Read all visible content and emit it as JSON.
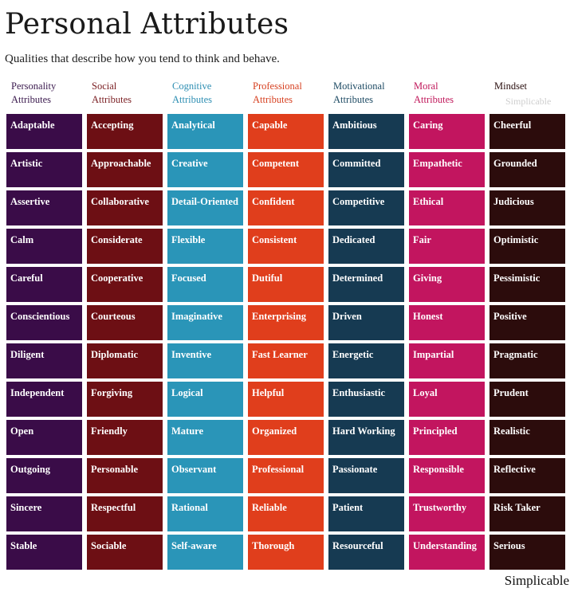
{
  "title": "Personal Attributes",
  "subtitle": "Qualities that describe how you tend to think and behave.",
  "watermark_small": "Simplicable",
  "footer": "Simplicable",
  "columns": [
    {
      "header": [
        "Personality",
        "Attributes"
      ],
      "header_color": "#3b1a4e",
      "cell_color": "#3a0c48",
      "items": [
        "Adaptable",
        "Artistic",
        "Assertive",
        "Calm",
        "Careful",
        "Conscientious",
        "Diligent",
        "Independent",
        "Open",
        "Outgoing",
        "Sincere",
        "Stable"
      ]
    },
    {
      "header": [
        "Social",
        "Attributes"
      ],
      "header_color": "#7a1e22",
      "cell_color": "#6d0f14",
      "items": [
        "Accepting",
        "Approachable",
        "Collaborative",
        "Considerate",
        "Cooperative",
        "Courteous",
        "Diplomatic",
        "Forgiving",
        "Friendly",
        "Personable",
        "Respectful",
        "Sociable"
      ]
    },
    {
      "header": [
        "Cognitive",
        "Attributes"
      ],
      "header_color": "#2f8fb3",
      "cell_color": "#2a95b8",
      "items": [
        "Analytical",
        "Creative",
        "Detail-Oriented",
        "Flexible",
        "Focused",
        "Imaginative",
        "Inventive",
        "Logical",
        "Mature",
        "Observant",
        "Rational",
        "Self-aware"
      ]
    },
    {
      "header": [
        "Professional",
        "Attributes"
      ],
      "header_color": "#d63f1f",
      "cell_color": "#e03e1c",
      "items": [
        "Capable",
        "Competent",
        "Confident",
        "Consistent",
        "Dutiful",
        "Enterprising",
        "Fast Learner",
        "Helpful",
        "Organized",
        "Professional",
        "Reliable",
        "Thorough"
      ]
    },
    {
      "header": [
        "Motivational",
        "Attributes"
      ],
      "header_color": "#1d4a63",
      "cell_color": "#163a52",
      "items": [
        "Ambitious",
        "Committed",
        "Competitive",
        "Dedicated",
        "Determined",
        "Driven",
        "Energetic",
        "Enthusiastic",
        "Hard Working",
        "Passionate",
        "Patient",
        "Resourceful"
      ]
    },
    {
      "header": [
        "Moral",
        "Attributes"
      ],
      "header_color": "#c0175a",
      "cell_color": "#c2155f",
      "items": [
        "Caring",
        "Empathetic",
        "Ethical",
        "Fair",
        "Giving",
        "Honest",
        "Impartial",
        "Loyal",
        "Principled",
        "Responsible",
        "Trustworthy",
        "Understanding"
      ]
    },
    {
      "header": [
        "Mindset",
        ""
      ],
      "header_color": "#2a0f0f",
      "cell_color": "#2c0c0c",
      "items": [
        "Cheerful",
        "Grounded",
        "Judicious",
        "Optimistic",
        "Pessimistic",
        "Positive",
        "Pragmatic",
        "Prudent",
        "Realistic",
        "Reflective",
        "Risk Taker",
        "Serious"
      ]
    }
  ]
}
